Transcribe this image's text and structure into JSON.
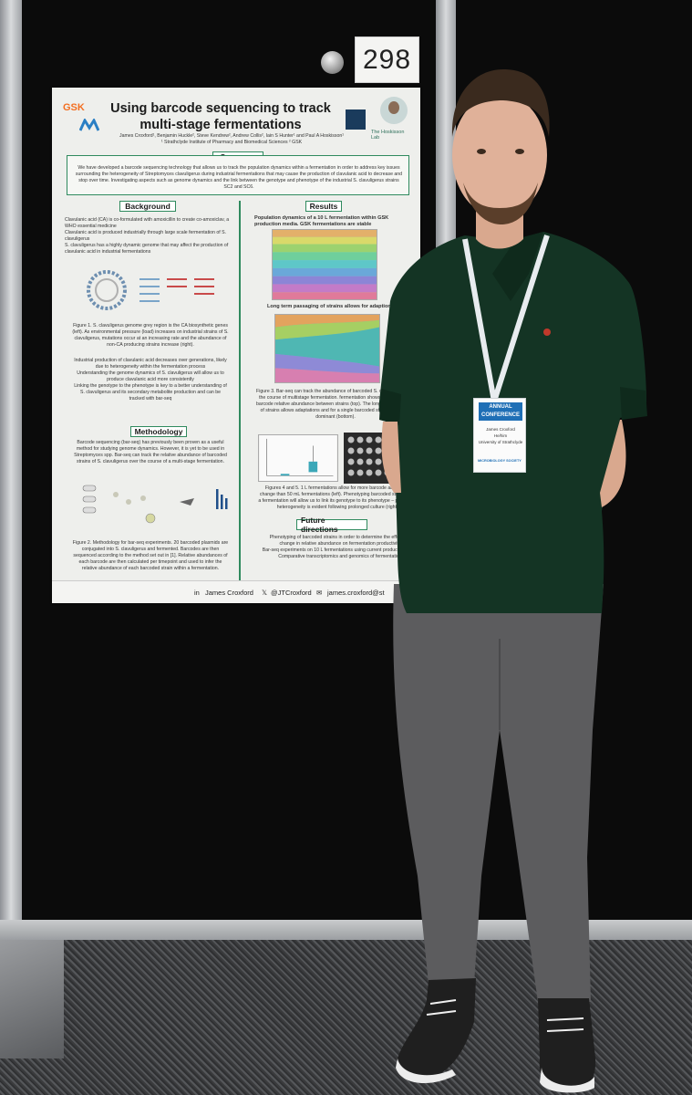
{
  "board": {
    "number": "298"
  },
  "poster": {
    "logo_gsk": "GSK",
    "title_line1": "Using barcode sequencing to track",
    "title_line2": "multi-stage fermentations",
    "authors": "James Croxford¹, Benjamin Huckle², Steve Kendrew², Andrew Collis², Iain S Hunter¹ and Paul A Hoskisson¹",
    "affiliations": "¹ Strathclyde Institute of Pharmacy and Biomedical Sciences ² GSK",
    "lab_name": "The Hoskisson Lab",
    "sections": {
      "summary": "Summary",
      "background": "Background",
      "results": "Results",
      "methodology": "Methodology",
      "future": "Future directions"
    },
    "summary_text": "We have developed a barcode sequencing technology that allows us to track the population dynamics within a fermentation in order to address key issues surrounding the heterogeneity of Streptomyces clavuligerus during industrial fermentations that may cause the production of clavulanic acid to decrease and stop over time. Investigating aspects such as genome dynamics and the link between the genotype and phenotype of the industrial S. clavuligerus strains SC2 and SC6.",
    "background_bullets": [
      "Clavulanic acid (CA) is co-formulated with amoxicillin to create co-amoxiclav, a WHO essential medicine",
      "Clavulanic acid is produced industrially through large scale fermentation of S. clavuligerus",
      "S. clavuligerus has a highly dynamic genome that may affect the production of clavulanic acid in industrial fermentations"
    ],
    "figure1_caption": "Figure 1. S. clavuligerus genome grey region is the CA biosynthetic genes (left). As environmental pressure (load) increases on industrial strains of S. clavuligerus, mutations occur at an increasing rate and the abundance of non-CA producing strains increase (right).",
    "background_bullets2": [
      "Industrial production of clavulanic acid decreases over generations, likely due to heterogeneity within the fermentation process",
      "Understanding the genome dynamics of S. clavuligerus will allow us to produce clavulanic acid more consistently",
      "Linking the genotype to the phenotype is key to a better understanding of S. clavuligerus and its secondary metabolite production and can be tracked with bar-seq"
    ],
    "methodology_text": "Barcode sequencing (bar-seq) has previously been proven as a useful method for studying genome dynamics. However, it is yet to be used in Streptomyces spp. Bar-seq can track the relative abundance of barcoded strains of S. clavuligerus over the course of a multi-stage fermentation.",
    "figure2_caption": "Figure 2. Methodology for bar-seq experiments. 20 barcoded plasmids are conjugated into S. clavuligerus and fermented. Barcodes are then sequenced according to the method set out in [1]. Relative abundances of each barcode are then calculated per timepoint and used to infer the relative abundance of each barcoded strain within a fermentation.",
    "results_heading1": "Population dynamics of a 10 L fermentation within GSK production media. GSK fermentations are stable",
    "results_heading2": "Long term passaging of strains allows for adaption",
    "figure3_caption": "Figure 3. Bar-seq can track the abundance of barcoded S. clavuligerus over the course of multistage fermentation. fermentation shows little change in barcode relative abundance between strains (top). The long-term passaging of strains allows adaptations and for a single barcoded strain to become dominant (bottom).",
    "figure45_caption": "Figures 4 and 5. 1 L fermentations allow for more barcode abundance change than 50 mL fermentations (left). Phenotyping barcoded strains from a fermentation will allow us to link its genotype to its phenotype – phenotypic heterogeneity is evident following prolonged culture (right).",
    "future_bullets": [
      "Phenotyping of barcoded strains in order to determine the effects of change in relative abundance on fermentation productivity",
      "Bar-seq experiments on 10 L fermentations using current production strain",
      "Comparative transcriptomics and genomics of fermentation"
    ],
    "footer": {
      "linkedin": "James Croxford",
      "twitter": "@JTCroxford",
      "email": "james.croxford@st"
    }
  },
  "badge": {
    "banner_line1": "ANNUAL",
    "banner_line2": "CONFERENCE",
    "name": "James Croxford",
    "role": "He/him",
    "org": "University of Strathclyde",
    "society": "MICROBIOLOGY SOCIETY"
  },
  "colors": {
    "poster_accent": "#2f8a5e",
    "shirt": "#143424",
    "trousers": "#5c5c5e",
    "board": "#0b0b0b"
  }
}
